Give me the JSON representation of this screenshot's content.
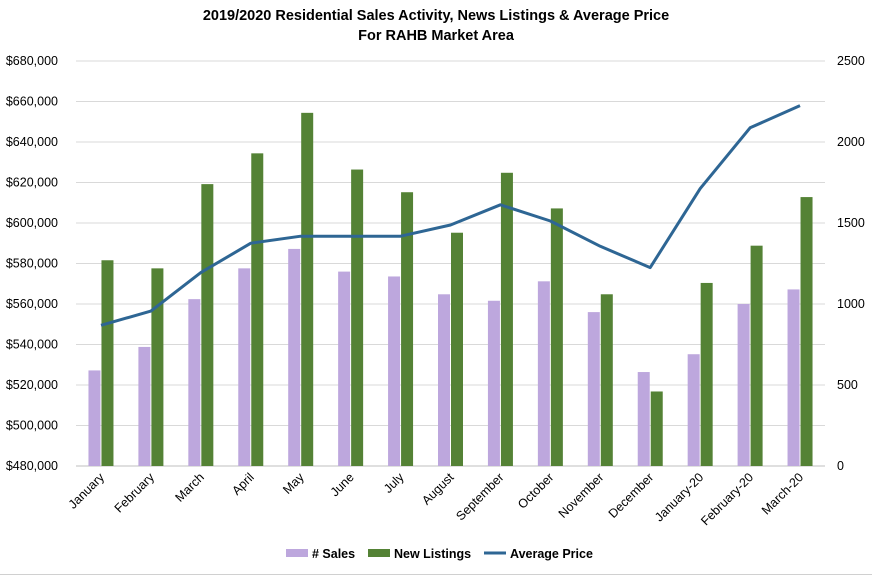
{
  "chart_data": {
    "type": "bar",
    "title": "2019/2020 Residential Sales Activity, News Listings & Average Price",
    "subtitle": "For RAHB Market Area",
    "categories": [
      "January",
      "February",
      "March",
      "April",
      "May",
      "June",
      "July",
      "August",
      "September",
      "October",
      "November",
      "December",
      "January-20",
      "February-20",
      "March-20"
    ],
    "y_left": {
      "min": 480000,
      "max": 680000,
      "step": 20000,
      "tick_labels": [
        "$480,000",
        "$500,000",
        "$520,000",
        "$540,000",
        "$560,000",
        "$580,000",
        "$600,000",
        "$620,000",
        "$640,000",
        "$660,000",
        "$680,000"
      ]
    },
    "y_right": {
      "min": 0,
      "max": 2500,
      "step": 500,
      "tick_labels": [
        "0",
        "500",
        "1000",
        "1500",
        "2000",
        "2500"
      ]
    },
    "series": [
      {
        "name": "# Sales",
        "type": "bar",
        "axis": "right",
        "color": "#bda7dd",
        "values": [
          590,
          735,
          1030,
          1220,
          1340,
          1200,
          1170,
          1060,
          1020,
          1140,
          950,
          580,
          690,
          1000,
          1090
        ]
      },
      {
        "name": "New Listings",
        "type": "bar",
        "axis": "right",
        "color": "#548235",
        "values": [
          1270,
          1220,
          1740,
          1930,
          2180,
          1830,
          1690,
          1440,
          1810,
          1590,
          1060,
          460,
          1130,
          1360,
          1660
        ]
      },
      {
        "name": "Average Price",
        "type": "line",
        "axis": "left",
        "color": "#2e6694",
        "values": [
          549500,
          556500,
          575500,
          590000,
          593500,
          593500,
          593500,
          599000,
          609000,
          601000,
          588500,
          578000,
          617000,
          647000,
          658000
        ]
      }
    ],
    "grid": true,
    "legend_position": "bottom"
  }
}
